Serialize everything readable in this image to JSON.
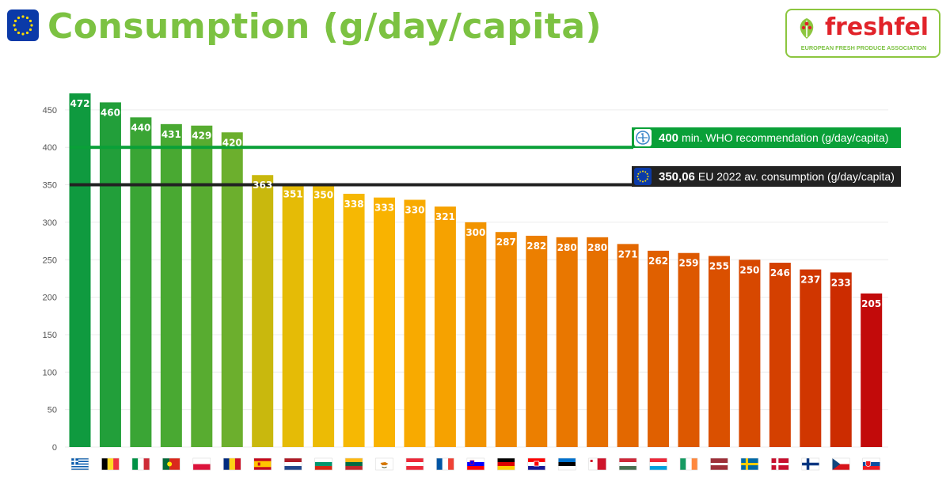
{
  "header": {
    "title": "Consumption (g/day/capita)",
    "logo_name": "freshfel",
    "logo_subtitle": "EUROPEAN FRESH PRODUCE ASSOCIATION"
  },
  "chart_data": {
    "type": "bar",
    "title": "Consumption (g/day/capita)",
    "xlabel": "",
    "ylabel": "",
    "ylim": [
      0,
      450
    ],
    "yticks": [
      0,
      50,
      100,
      150,
      200,
      250,
      300,
      350,
      400,
      450
    ],
    "grid": true,
    "categories_icons": [
      "flag-greece-icon",
      "flag-belgium-icon",
      "flag-italy-icon",
      "flag-portugal-icon",
      "flag-poland-icon",
      "flag-romania-icon",
      "flag-spain-icon",
      "flag-netherlands-icon",
      "flag-bulgaria-icon",
      "flag-lithuania-icon",
      "flag-cyprus-icon",
      "flag-austria-icon",
      "flag-france-icon",
      "flag-slovenia-icon",
      "flag-germany-icon",
      "flag-croatia-icon",
      "flag-estonia-icon",
      "flag-malta-icon",
      "flag-hungary-icon",
      "flag-luxembourg-icon",
      "flag-ireland-icon",
      "flag-latvia-icon",
      "flag-sweden-icon",
      "flag-denmark-icon",
      "flag-finland-icon",
      "flag-czechia-icon",
      "flag-slovakia-icon"
    ],
    "values": [
      472,
      460,
      440,
      431,
      429,
      420,
      363,
      351,
      350,
      338,
      333,
      330,
      321,
      300,
      287,
      282,
      280,
      280,
      271,
      262,
      259,
      255,
      250,
      246,
      237,
      233,
      205
    ],
    "data_labels": [
      "472",
      "460",
      "440",
      "431",
      "429",
      "420",
      "363",
      "351",
      "350",
      "338",
      "333",
      "330",
      "321",
      "300",
      "287",
      "282",
      "280",
      "280",
      "271",
      "262",
      "259",
      "255",
      "250",
      "246",
      "237",
      "233",
      "205"
    ],
    "bar_colors": [
      "#0f9a3f",
      "#229f3a",
      "#3aa535",
      "#49a932",
      "#58ac30",
      "#6caf2d",
      "#c9b80d",
      "#e5bb06",
      "#ecbb05",
      "#f6b803",
      "#f9b300",
      "#f8aa00",
      "#f6a200",
      "#f29400",
      "#ef8800",
      "#ec7f00",
      "#e97700",
      "#e67000",
      "#e36800",
      "#e06000",
      "#dd5800",
      "#da5000",
      "#d74800",
      "#d44000",
      "#d03600",
      "#cc2c00",
      "#c20a0a"
    ],
    "reference_lines": [
      {
        "value": 400,
        "value_label": "400",
        "label": "min. WHO recommendation  (g/day/capita)",
        "color": "#0aa038"
      },
      {
        "value": 350.06,
        "value_label": "350,06",
        "label": "EU 2022 av. consumption (g/day/capita)",
        "color": "#222222"
      }
    ]
  }
}
